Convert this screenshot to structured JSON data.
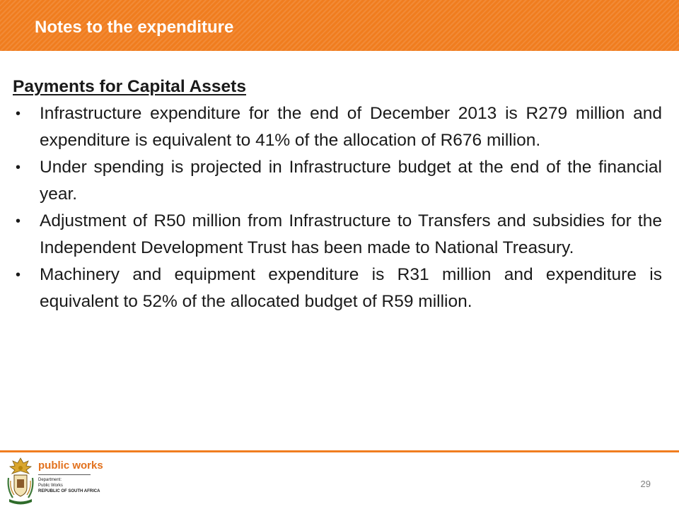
{
  "header": {
    "title": "Notes to the expenditure"
  },
  "section": {
    "heading": "Payments for Capital Assets"
  },
  "bullets": [
    "Infrastructure expenditure for the end of  December 2013 is R279 million and expenditure is equivalent to 41% of the allocation of R676 million.",
    "Under spending is projected in Infrastructure budget at the end of the financial year.",
    "Adjustment of R50 million from Infrastructure to Transfers and subsidies for the Independent Development Trust has been made to National Treasury.",
    "Machinery and equipment expenditure is R31 million and expenditure is equivalent to 52% of the allocated budget of R59 million."
  ],
  "bullet_symbol": "•",
  "footer": {
    "logo": {
      "name": "public works",
      "line1": "Department:",
      "line2": "Public Works",
      "line3": "REPUBLIC OF SOUTH AFRICA"
    },
    "page_number": "29"
  },
  "colors": {
    "accent": "#f07d1f",
    "header_text": "#ffffff",
    "body_text": "#1a1a1a",
    "page_number": "#808080"
  }
}
